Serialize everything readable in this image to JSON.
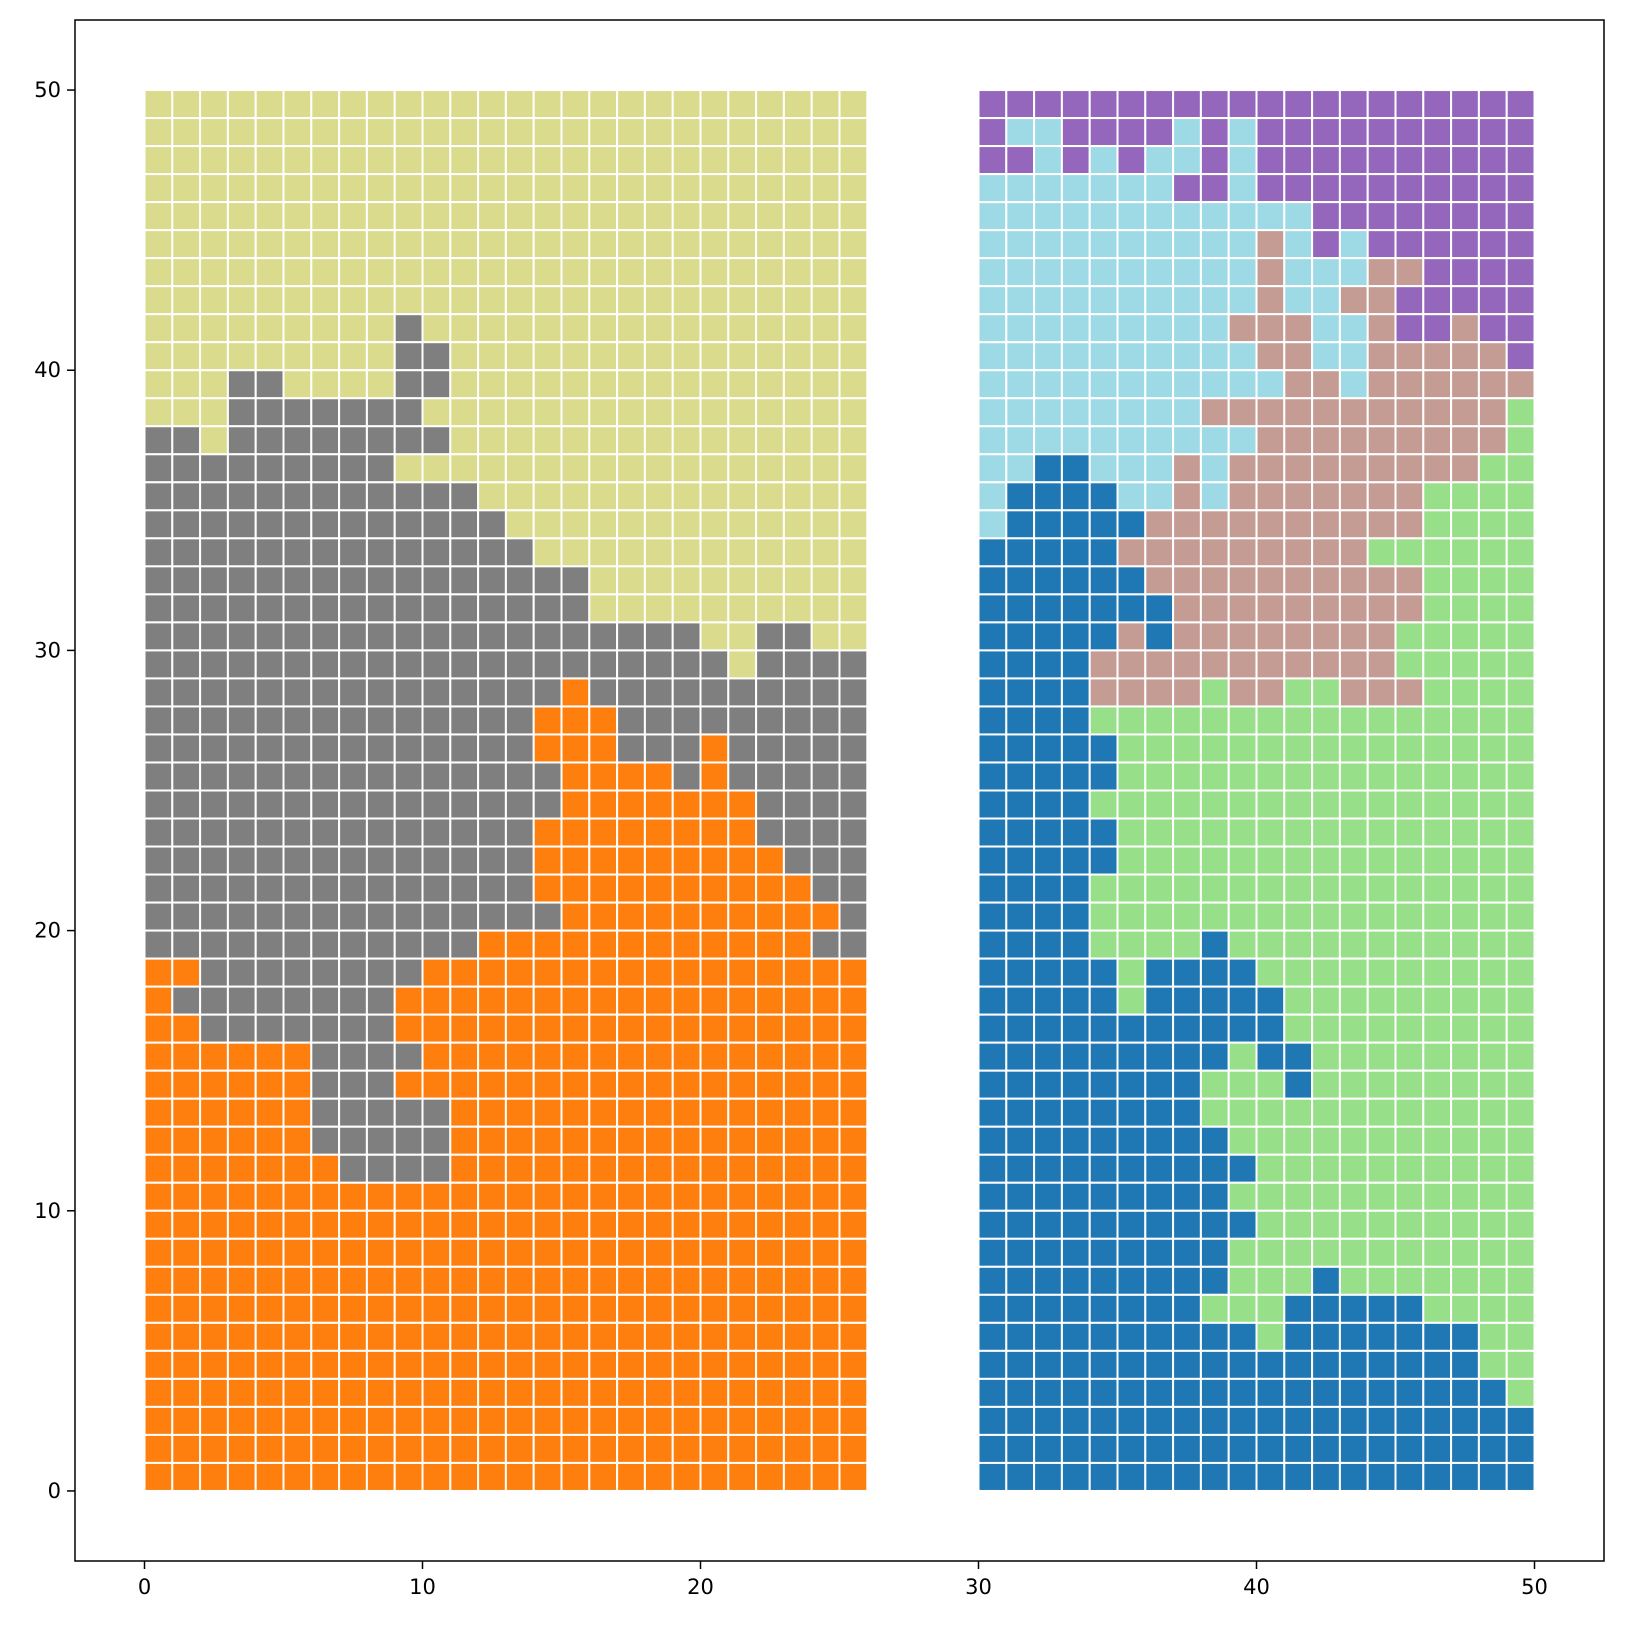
{
  "chart_data": {
    "type": "heatmap",
    "title": "",
    "xlabel": "",
    "ylabel": "",
    "xlim": [
      -2.5,
      52.5
    ],
    "ylim": [
      -2.5,
      52.5
    ],
    "grid": false,
    "cell_edge_color": "#ffffff",
    "x_ticks": [
      "0",
      "10",
      "20",
      "30",
      "40",
      "50"
    ],
    "y_ticks": [
      "0",
      "10",
      "20",
      "30",
      "40",
      "50"
    ],
    "palette": {
      "O": "#ff7f0e",
      "G": "#7f7f7f",
      "Y": "#dbdb8d",
      "B": "#1f77b4",
      "L": "#98df8a",
      "P": "#c49c94",
      "C": "#9edae5",
      "V": "#9467bd"
    },
    "blocks": [
      {
        "x0": 0,
        "y0": 0,
        "width": 26,
        "height": 50,
        "rows": [
          "YYYYYYYYYYYYYYYYYYYYYYYYYY",
          "YYYYYYYYYYYYYYYYYYYYYYYYYY",
          "YYYYYYYYYYYYYYYYYYYYYYYYYY",
          "YYYYYYYYYYYYYYYYYYYYYYYYYY",
          "YYYYYYYYYYYYYYYYYYYYYYYYYY",
          "YYYYYYYYYYYYYYYYYYYYYYYYYY",
          "YYYYYYYYYYYYYYYYYYYYYYYYYY",
          "YYYYYYYYYYYYYYYYYYYYYYYYYY",
          "YYYYYYYYYGYYYYYYYYYYYYYYYY",
          "YYYYYYYYYGGYYYYYYYYYYYYYYY",
          "YYYGGYYYYGGYYYYYYYYYYYYYYY",
          "YYYGGGGGGGYYYYYYYYYYYYYYYY",
          "GGYGGGGGGGGYYYYYYYYYYYYYYY",
          "GGGGGGGGGYYYYYYYYYYYYYYYYY",
          "GGGGGGGGGGGGYYYYYYYYYYYYYY",
          "GGGGGGGGGGGGGYYYYYYYYYYYYY",
          "GGGGGGGGGGGGGGYYYYYYYYYYYY",
          "GGGGGGGGGGGGGGGGYYYYYYYYYY",
          "GGGGGGGGGGGGGGGGYYYYYYYYYY",
          "GGGGGGGGGGGGGGGGGGGGYYGGYY",
          "GGGGGGGGGGGGGGGGGGGGGYGGGG",
          "GGGGGGGGGGGGGGGOGGGGGGGGGG",
          "GGGGGGGGGGGGGGOOOGGGGGGGGG",
          "GGGGGGGGGGGGGGOOOGGGOGGGGG",
          "GGGGGGGGGGGGGGGOOOOGOGGGGG",
          "GGGGGGGGGGGGGGGOOOOOOOGGGG",
          "GGGGGGGGGGGGGGOOOOOOOOGGGG",
          "GGGGGGGGGGGGGGOOOOOOOOOGGG",
          "GGGGGGGGGGGGGGOOOOOOOOOOGG",
          "GGGGGGGGGGGGGGGOOOOOOOOOOG",
          "GGGGGGGGGGGGOOOOOOOOOOOOGG",
          "OOGGGGGGGGOOOOOOOOOOOOOOOO",
          "OGGGGGGGGOOOOOOOOOOOOOOOOO",
          "OOGGGGGGGOOOOOOOOOOOOOOOOO",
          "OOOOOOGGGGOOOOOOOOOOOOOOOO",
          "OOOOOOGGGOOOOOOOOOOOOOOOOO",
          "OOOOOOGGGGGOOOOOOOOOOOOOOO",
          "OOOOOOGGGGGOOOOOOOOOOOOOOO",
          "OOOOOOOGGGGOOOOOOOOOOOOOOO",
          "OOOOOOOOOOOOOOOOOOOOOOOOOO",
          "OOOOOOOOOOOOOOOOOOOOOOOOOO",
          "OOOOOOOOOOOOOOOOOOOOOOOOOO",
          "OOOOOOOOOOOOOOOOOOOOOOOOOO",
          "OOOOOOOOOOOOOOOOOOOOOOOOOO",
          "OOOOOOOOOOOOOOOOOOOOOOOOOO",
          "OOOOOOOOOOOOOOOOOOOOOOOOOO",
          "OOOOOOOOOOOOOOOOOOOOOOOOOO",
          "OOOOOOOOOOOOOOOOOOOOOOOOOO",
          "OOOOOOOOOOOOOOOOOOOOOOOOOO",
          "OOOOOOOOOOOOOOOOOOOOOOOOOO"
        ]
      },
      {
        "x0": 30,
        "y0": 0,
        "width": 20,
        "height": 50,
        "rows": [
          "VVVVVVVVVVVVVVVVVVVV",
          "VCCVVVVCVCVVVVVVVVVV",
          "VVCVCVCCVCVVVVVVVVVV",
          "CCCCCCCVVCVVVVVVVVVV",
          "CCCCCCCCCCCCVVVVVVVV",
          "CCCCCCCCCCPCVCVVVVVV",
          "CCCCCCCCCCPCCCPPVVVV",
          "CCCCCCCCCCPCCPPVVVVV",
          "CCCCCCCCCPPPCCPVVPVV",
          "CCCCCCCCCCPPCCPPPPPV",
          "CCCCCCCCCCCPPCPPPPPP",
          "CCCCCCCCPPPPPPPPPPPL",
          "CCCCCCCCCCPPPPPPPPPL",
          "CCBBCCCPCPPPPPPPPPLL",
          "CBBBBCCPCPPPPPPPLLLL",
          "CBBBBBPPPPPPPPPPLLLL",
          "BBBBBPPPPPPPPPLLLLLL",
          "BBBBBBPPPPPPPPPPLLLL",
          "BBBBBBBPPPPPPPPPLLLL",
          "BBBBBPBPPPPPPPPLLLLL",
          "BBBBPPPPPPPPPPPLLLLL",
          "BBBBPPPPLPPLLPPPLLLL",
          "BBBBLLLLLLLLLLLLLLLL",
          "BBBBBLLLLLLLLLLLLLLL",
          "BBBBBLLLLLLLLLLLLLLL",
          "BBBBLLLLLLLLLLLLLLLL",
          "BBBBBLLLLLLLLLLLLLLL",
          "BBBBBLLLLLLLLLLLLLLL",
          "BBBBLLLLLLLLLLLLLLLL",
          "BBBBLLLLLLLLLLLLLLLL",
          "BBBBLLLLBLLLLLLLLLLL",
          "BBBBBLBBBBLLLLLLLLLL",
          "BBBBBLBBBBBLLLLLLLLL",
          "BBBBBBBBBBBLLLLLLLLL",
          "BBBBBBBBBLBBLLLLLLLL",
          "BBBBBBBBLLLBLLLLLLLL",
          "BBBBBBBBLLLLLLLLLLLL",
          "BBBBBBBBBLLLLLLLLLLL",
          "BBBBBBBBBBLLLLLLLLLL",
          "BBBBBBBBBLLLLLLLLLLL",
          "BBBBBBBBBBLLLLLLLLLL",
          "BBBBBBBBBLLLLLLLLLLL",
          "BBBBBBBBBLLLBLLLLLLL",
          "BBBBBBBBLLLBBBBBLLLL",
          "BBBBBBBBBBLBBBBBBBLL",
          "BBBBBBBBBBBBBBBBBBLL",
          "BBBBBBBBBBBBBBBBBBBL",
          "BBBBBBBBBBBBBBBBBBBB",
          "BBBBBBBBBBBBBBBBBBBB",
          "BBBBBBBBBBBBBBBBBBBB"
        ]
      }
    ]
  }
}
